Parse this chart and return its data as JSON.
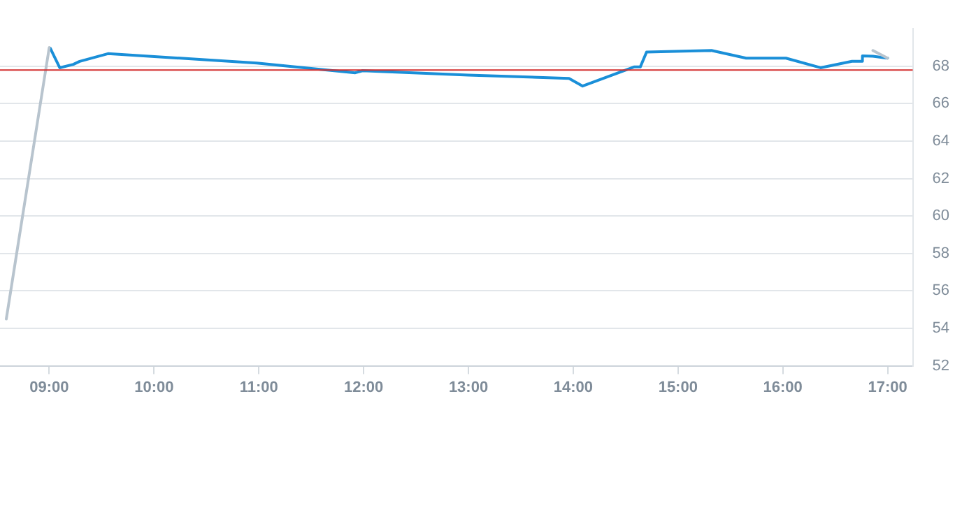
{
  "chart_data": {
    "type": "line",
    "xlim": [
      8.53,
      17.24
    ],
    "ylim": [
      52,
      70
    ],
    "xticks": [
      {
        "value": 9,
        "label": "09:00"
      },
      {
        "value": 10,
        "label": "10:00"
      },
      {
        "value": 11,
        "label": "11:00"
      },
      {
        "value": 12,
        "label": "12:00"
      },
      {
        "value": 13,
        "label": "13:00"
      },
      {
        "value": 14,
        "label": "14:00"
      },
      {
        "value": 15,
        "label": "15:00"
      },
      {
        "value": 16,
        "label": "16:00"
      },
      {
        "value": 17,
        "label": "17:00"
      }
    ],
    "yticks": [
      52,
      54,
      56,
      58,
      60,
      62,
      64,
      66,
      68
    ],
    "grid": "y",
    "legend": false,
    "marker": "none",
    "line_style": "solid",
    "ref_lines": [
      {
        "axis": "y",
        "value": 67.8,
        "color": "#d32f2f"
      }
    ],
    "series": [
      {
        "color": "#b8c4ce",
        "x": [
          8.59,
          9.0,
          null,
          16.86,
          17.0
        ],
        "values": [
          54.5,
          69.0,
          null,
          68.84,
          68.43
        ]
      },
      {
        "color": "#1a8fd8",
        "x": [
          9.01,
          9.1,
          9.23,
          9.29,
          9.56,
          10.98,
          11.92,
          11.99,
          13.0,
          13.96,
          14.09,
          14.58,
          14.64,
          14.7,
          15.32,
          15.65,
          16.03,
          16.36,
          16.66,
          16.75,
          16.76,
          16.86,
          17.0
        ],
        "values": [
          68.96,
          67.92,
          68.1,
          68.26,
          68.67,
          68.17,
          67.65,
          67.76,
          67.53,
          67.35,
          66.94,
          67.96,
          67.96,
          68.76,
          68.84,
          68.43,
          68.43,
          67.92,
          68.26,
          68.26,
          68.55,
          68.53,
          68.43
        ]
      }
    ]
  }
}
